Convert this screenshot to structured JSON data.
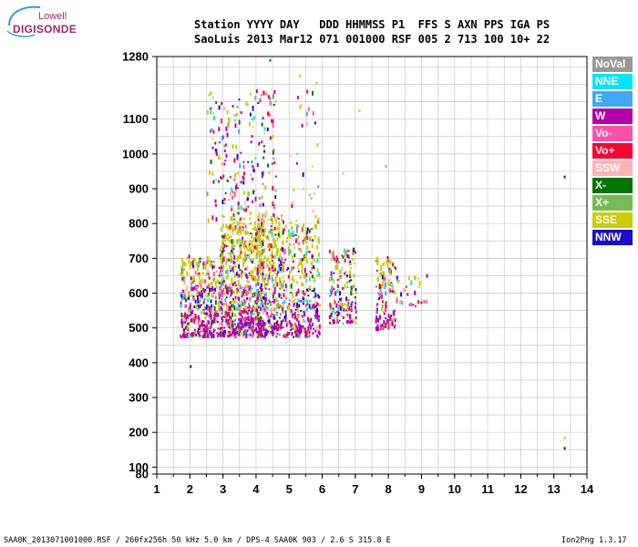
{
  "logo": {
    "top": "Lowell",
    "bottom": "DIGISONDE"
  },
  "header": {
    "row1": "Station YYYY DAY   DDD HHMMSS P1  FFS S AXN PPS IGA PS",
    "row2": "SaoLuis 2013 Mar12 071 001000 RSF 005 2 713 100 10+ 22"
  },
  "legend": [
    {
      "label": "NoVal",
      "color": "#999999"
    },
    {
      "label": "NNE",
      "color": "#00e5ff"
    },
    {
      "label": "E",
      "color": "#3fa9f5"
    },
    {
      "label": "W",
      "color": "#b300a7"
    },
    {
      "label": "Vo-",
      "color": "#ff4fa7"
    },
    {
      "label": "Vo+",
      "color": "#ff0033"
    },
    {
      "label": "SSW",
      "color": "#ffb3b3"
    },
    {
      "label": "X-",
      "color": "#007700"
    },
    {
      "label": "X+",
      "color": "#77bb55"
    },
    {
      "label": "SSE",
      "color": "#cccc00"
    },
    {
      "label": "NNW",
      "color": "#1a0dcc"
    }
  ],
  "footer": {
    "left": "SAA0K_2013071001000.RSF / 260fx256h 50 kHz 5.0 km / DPS-4 SAA0K 903 / 2.6 S 315.8 E",
    "right": "Ion2Png 1.3.17"
  },
  "chart_data": {
    "type": "scatter",
    "x_ticks": [
      "1",
      "2",
      "3",
      "4",
      "5",
      "6",
      "7",
      "8",
      "9",
      "10",
      "11",
      "12",
      "13",
      "14"
    ],
    "y_ticks": [
      "80",
      "100",
      "200",
      "300",
      "400",
      "500",
      "600",
      "700",
      "800",
      "900",
      "1000",
      "1100",
      "1280"
    ],
    "xlim": [
      1,
      14
    ],
    "ylim": [
      80,
      1280
    ],
    "grid": true,
    "regions": [
      {
        "x": [
          1.7,
          3.0
        ],
        "y": [
          470,
          700
        ],
        "n": 420,
        "seed": 1
      },
      {
        "x": [
          2.9,
          4.2
        ],
        "y": [
          470,
          800
        ],
        "n": 650,
        "seed": 2
      },
      {
        "x": [
          4.0,
          4.8
        ],
        "y": [
          470,
          820
        ],
        "n": 360,
        "seed": 3
      },
      {
        "x": [
          2.5,
          4.6
        ],
        "y": [
          800,
          1180
        ],
        "n": 230,
        "seed": 4
      },
      {
        "x": [
          4.8,
          5.9
        ],
        "y": [
          470,
          800
        ],
        "n": 330,
        "seed": 5
      },
      {
        "x": [
          5.0,
          6.0
        ],
        "y": [
          800,
          1200
        ],
        "n": 30,
        "seed": 6
      },
      {
        "x": [
          6.2,
          7.0
        ],
        "y": [
          510,
          720
        ],
        "n": 170,
        "seed": 7
      },
      {
        "x": [
          7.6,
          8.2
        ],
        "y": [
          490,
          700
        ],
        "n": 120,
        "seed": 8
      },
      {
        "x": [
          8.2,
          9.3
        ],
        "y": [
          560,
          650
        ],
        "n": 35,
        "seed": 9
      }
    ],
    "extra_points": [
      {
        "x": 2.0,
        "y": 385,
        "s": "NNW"
      },
      {
        "x": 13.3,
        "y": 150,
        "s": "NNW"
      },
      {
        "x": 13.3,
        "y": 180,
        "s": "SSE"
      },
      {
        "x": 13.3,
        "y": 930,
        "s": "NNW"
      },
      {
        "x": 4.4,
        "y": 1265,
        "s": "X-"
      },
      {
        "x": 7.1,
        "y": 1120,
        "s": "SSE"
      },
      {
        "x": 7.9,
        "y": 960,
        "s": "X+"
      },
      {
        "x": 6.6,
        "y": 940,
        "s": "SSW"
      },
      {
        "x": 5.3,
        "y": 1220,
        "s": "SSE"
      },
      {
        "x": 5.8,
        "y": 1200,
        "s": "SSE"
      }
    ]
  }
}
